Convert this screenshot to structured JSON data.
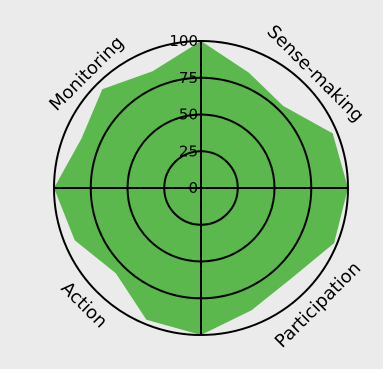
{
  "chart_data": {
    "type": "radar",
    "title": "",
    "axes": [
      "Monitoring",
      "Sense-making",
      "Participation",
      "Action"
    ],
    "rlim": [
      0,
      100
    ],
    "rticks": [
      0,
      25,
      50,
      75,
      100
    ],
    "rtick_labels": [
      "0",
      "25",
      "50",
      "75",
      "100"
    ],
    "grid": true,
    "series": [
      {
        "color": "#5ab84c",
        "points": [
          {
            "angle_deg": 0,
            "value": 100
          },
          {
            "angle_deg": 22.5,
            "value": 85
          },
          {
            "angle_deg": 45,
            "value": 79
          },
          {
            "angle_deg": 67.5,
            "value": 97
          },
          {
            "angle_deg": 90,
            "value": 100
          },
          {
            "angle_deg": 112.5,
            "value": 98
          },
          {
            "angle_deg": 135,
            "value": 87
          },
          {
            "angle_deg": 157.5,
            "value": 90
          },
          {
            "angle_deg": 180,
            "value": 100
          },
          {
            "angle_deg": 202.5,
            "value": 97
          },
          {
            "angle_deg": 225,
            "value": 82
          },
          {
            "angle_deg": 247.5,
            "value": 93
          },
          {
            "angle_deg": 270,
            "value": 100
          },
          {
            "angle_deg": 292.5,
            "value": 88
          },
          {
            "angle_deg": 315,
            "value": 95
          },
          {
            "angle_deg": 337.5,
            "value": 86
          }
        ]
      }
    ]
  }
}
